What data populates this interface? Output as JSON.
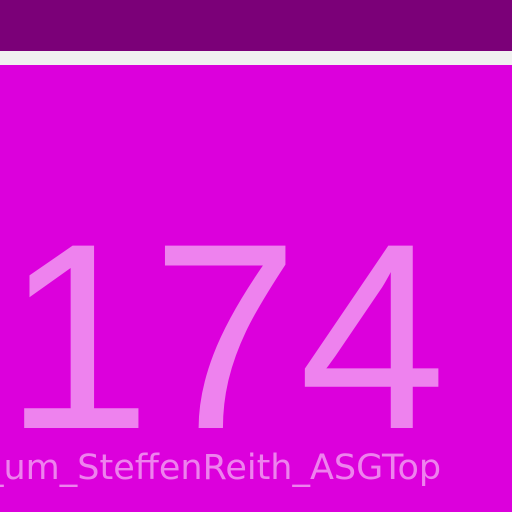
{
  "tile": {
    "count": "174",
    "label": "_um_SteffenReith_ASGTop"
  },
  "colors": {
    "status_bar": "#7b0078",
    "tile_background": "#dc00dc",
    "tile_text": "#ee82ee",
    "divider": "#f0f0f0"
  }
}
